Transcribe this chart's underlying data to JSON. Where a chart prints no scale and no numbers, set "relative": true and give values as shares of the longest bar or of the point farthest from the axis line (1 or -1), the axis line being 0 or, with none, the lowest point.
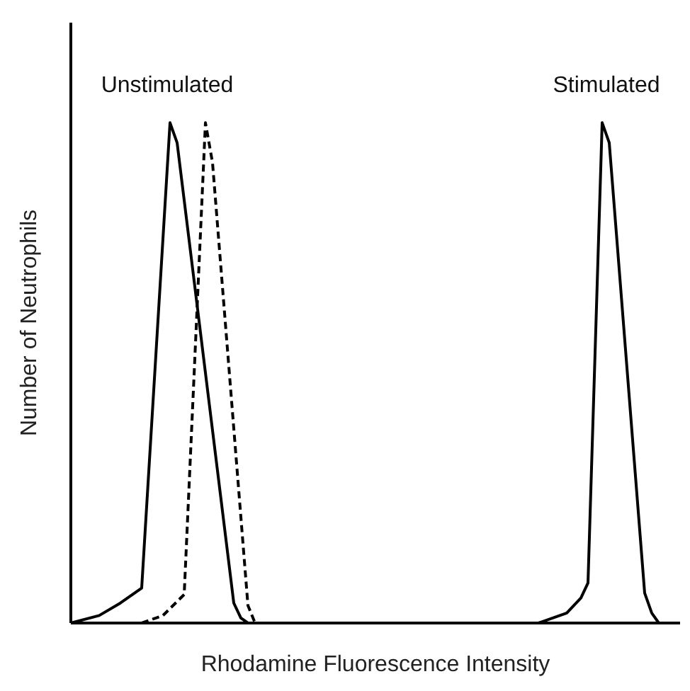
{
  "chart_data": {
    "type": "line",
    "relative": true,
    "xlabel": "Rhodamine Fluorescence Intensity",
    "ylabel": "Number of Neutrophils",
    "annotations": [
      "Unstimulated",
      "Stimulated"
    ],
    "categories": [
      null,
      null,
      null,
      null,
      null,
      null,
      null,
      null,
      null,
      null,
      null,
      null,
      null,
      null,
      null,
      null,
      null,
      null,
      null,
      null,
      null,
      null,
      null,
      null,
      null,
      null,
      null,
      null,
      null,
      null,
      null,
      null,
      null,
      null,
      null,
      null,
      null,
      null,
      null,
      null,
      null,
      null,
      null,
      null,
      null,
      null,
      null,
      null,
      null,
      null,
      null,
      null,
      null,
      null,
      null,
      null,
      null,
      null,
      null,
      null,
      null,
      null,
      null,
      null,
      null,
      null,
      null,
      null,
      null,
      null,
      null,
      null,
      null,
      null,
      null,
      null,
      null,
      null,
      null,
      null,
      null,
      null,
      null,
      null,
      null,
      null,
      null
    ],
    "series": [
      {
        "color": "#000000",
        "line_style": "solid",
        "values": [
          0,
          null,
          null,
          null,
          0.015,
          null,
          null,
          0.04,
          null,
          null,
          0.07,
          null,
          null,
          null,
          1,
          0.96,
          null,
          null,
          null,
          null,
          null,
          null,
          null,
          0.04,
          0.01,
          0,
          null,
          null,
          null,
          null,
          null,
          null,
          null,
          null,
          null,
          null,
          null,
          null,
          null,
          null,
          null,
          null,
          null,
          null,
          null,
          null,
          null,
          null,
          null,
          null,
          null,
          null,
          null,
          null,
          null,
          null,
          null,
          null,
          null,
          null,
          null,
          null,
          null,
          null,
          null,
          null,
          null,
          null,
          null,
          null,
          null,
          null,
          null,
          null,
          null,
          null,
          null,
          null,
          null,
          null,
          null,
          null,
          null,
          null,
          null,
          null,
          null
        ]
      },
      {
        "color": "#000000",
        "line_style": "dashed",
        "values": [
          null,
          null,
          null,
          null,
          null,
          null,
          null,
          null,
          null,
          null,
          0,
          null,
          null,
          0.015,
          null,
          null,
          0.057,
          null,
          null,
          1,
          0.92,
          null,
          null,
          null,
          null,
          0.035,
          0,
          null,
          null,
          null,
          null,
          null,
          null,
          null,
          null,
          null,
          null,
          null,
          null,
          null,
          null,
          null,
          null,
          null,
          null,
          null,
          null,
          null,
          null,
          null,
          null,
          null,
          null,
          null,
          null,
          null,
          null,
          null,
          null,
          null,
          null,
          null,
          null,
          null,
          null,
          null,
          null,
          null,
          null,
          null,
          null,
          null,
          null,
          null,
          null,
          null,
          null,
          null,
          null,
          null,
          null,
          null,
          null,
          null,
          null,
          null,
          null
        ]
      },
      {
        "color": "#000000",
        "line_style": "solid",
        "values": [
          null,
          null,
          null,
          null,
          null,
          null,
          null,
          null,
          null,
          null,
          null,
          null,
          null,
          null,
          null,
          null,
          null,
          null,
          null,
          null,
          null,
          null,
          null,
          null,
          null,
          null,
          null,
          null,
          null,
          null,
          null,
          null,
          null,
          null,
          null,
          null,
          null,
          null,
          null,
          null,
          null,
          null,
          null,
          null,
          null,
          null,
          null,
          null,
          null,
          null,
          null,
          null,
          null,
          null,
          null,
          null,
          null,
          null,
          null,
          null,
          null,
          null,
          null,
          null,
          null,
          null,
          0,
          null,
          null,
          null,
          0.02,
          null,
          0.05,
          0.08,
          null,
          1,
          0.96,
          null,
          null,
          null,
          null,
          0.06,
          0.02,
          0,
          null,
          null,
          null
        ]
      }
    ]
  }
}
